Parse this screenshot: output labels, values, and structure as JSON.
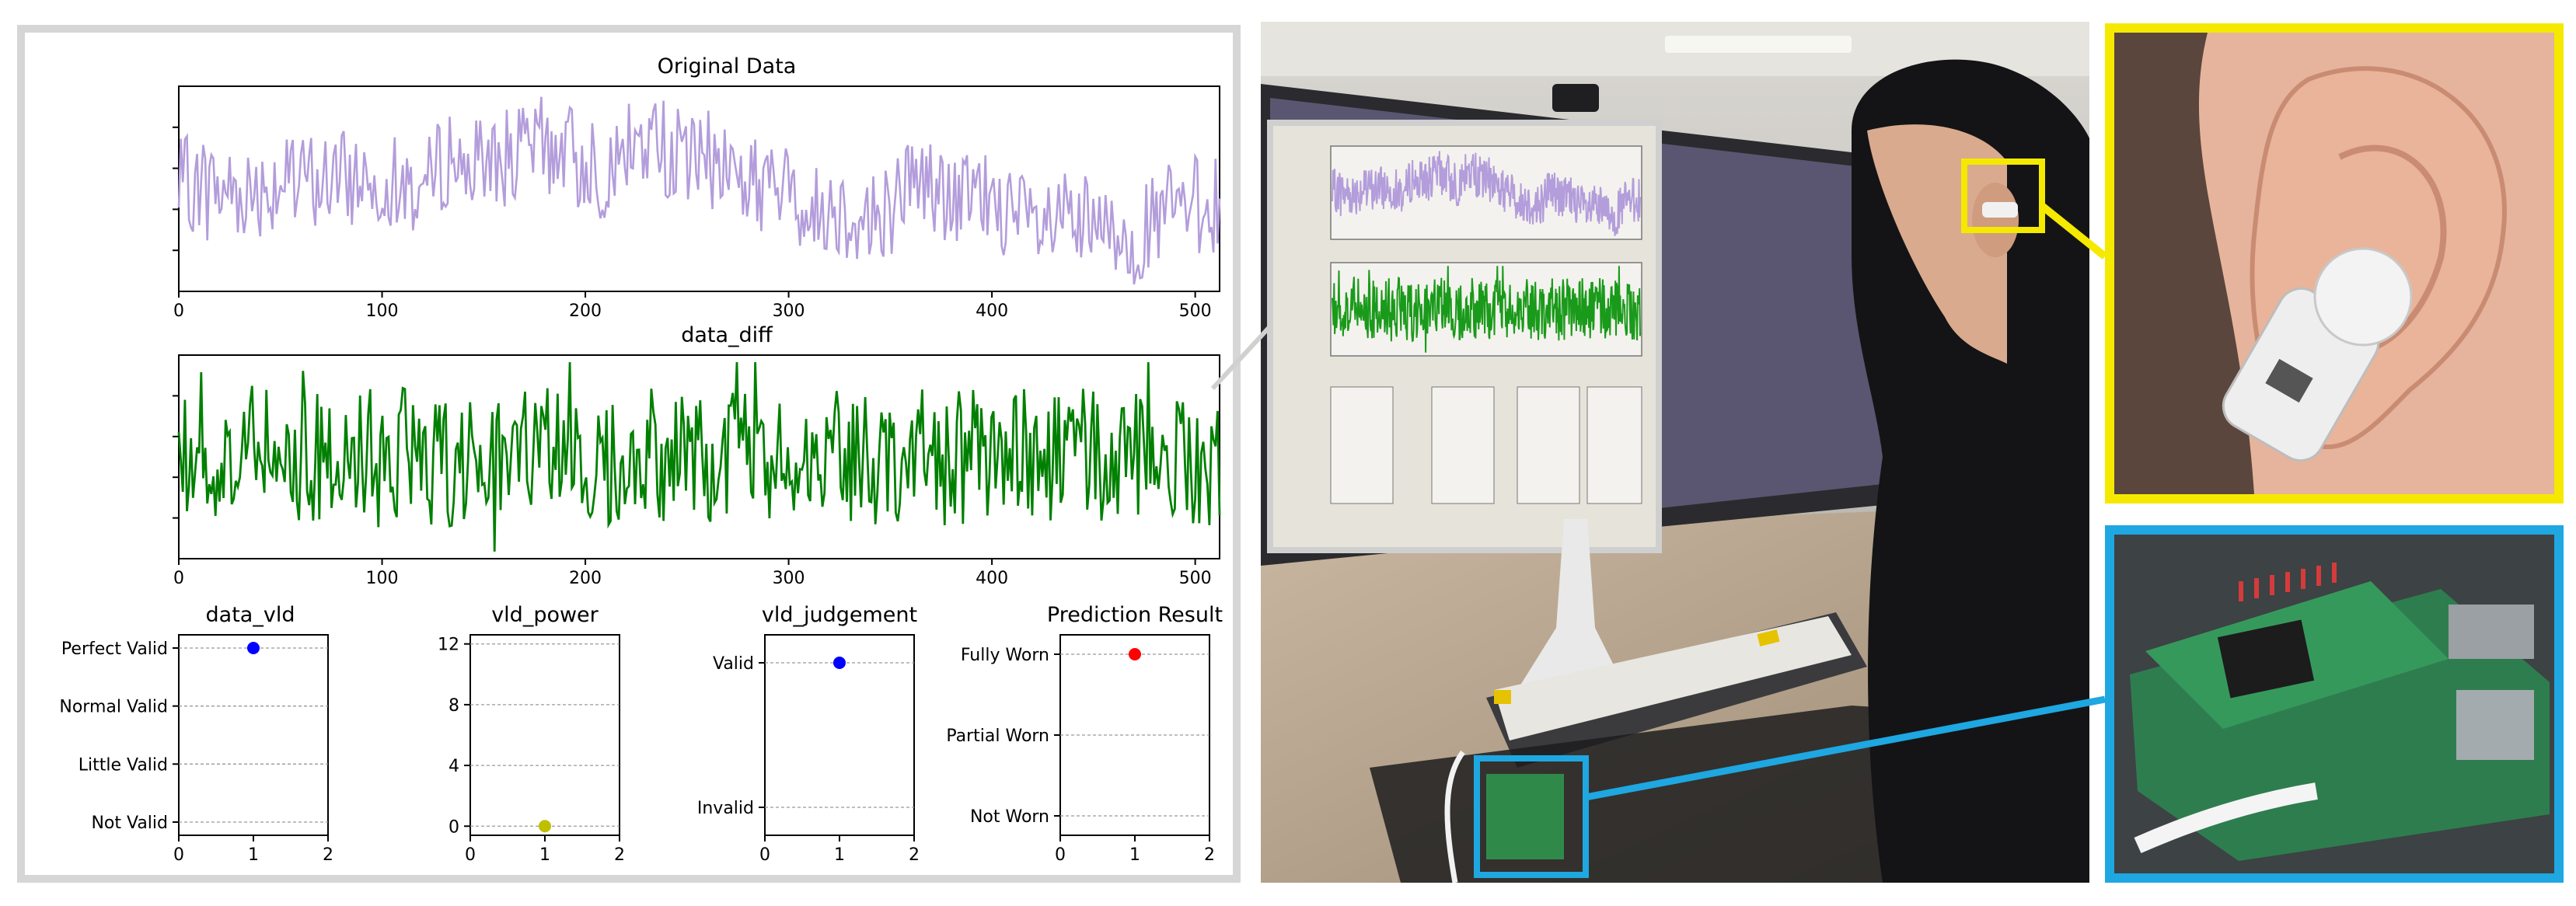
{
  "plots": {
    "original": {
      "title": "Original Data",
      "x_ticks": [
        "0",
        "100",
        "200",
        "300",
        "400",
        "500"
      ],
      "color": "#b39ddb"
    },
    "diff": {
      "title": "data_diff",
      "x_ticks": [
        "0",
        "100",
        "200",
        "300",
        "400",
        "500"
      ],
      "color": "#008000"
    },
    "data_vld": {
      "title": "data_vld",
      "y_labels": [
        "Perfect Valid",
        "Normal Valid",
        "Little Valid",
        "Not Valid"
      ],
      "x_ticks": [
        "0",
        "1",
        "2"
      ],
      "point_x": 1,
      "point_level": "Perfect Valid",
      "point_color": "#0000ff"
    },
    "vld_power": {
      "title": "vld_power",
      "y_ticks": [
        "12",
        "8",
        "4",
        "0"
      ],
      "x_ticks": [
        "0",
        "1",
        "2"
      ],
      "point_x": 1,
      "point_y": 0,
      "point_color": "#bfbf00"
    },
    "vld_judgement": {
      "title": "vld_judgement",
      "y_labels": [
        "Valid",
        "Invalid"
      ],
      "x_ticks": [
        "0",
        "1",
        "2"
      ],
      "point_x": 1,
      "point_level": "Valid",
      "point_color": "#0000ff"
    },
    "prediction": {
      "title": "Prediction Result",
      "y_labels": [
        "Fully Worn",
        "Partial Worn",
        "Not Worn"
      ],
      "x_ticks": [
        "0",
        "1",
        "2"
      ],
      "point_x": 1,
      "point_level": "Fully Worn",
      "point_color": "#ff0000"
    }
  },
  "photos": {
    "main": {
      "subject": "person wearing ear device at desk with monitor",
      "highlight_ear_color": "#f5e900",
      "highlight_board_color": "#1ea7e1"
    },
    "ear_closeup": {
      "subject": "ear-worn sensor device",
      "border_color": "#f5e900"
    },
    "board_closeup": {
      "subject": "Raspberry Pi with sensor board",
      "border_color": "#1ea7e1"
    }
  }
}
